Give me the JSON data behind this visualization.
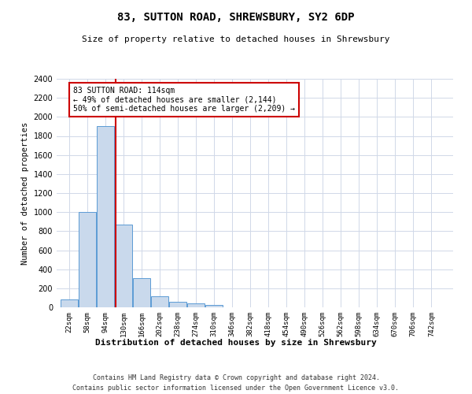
{
  "title": "83, SUTTON ROAD, SHREWSBURY, SY2 6DP",
  "subtitle": "Size of property relative to detached houses in Shrewsbury",
  "xlabel": "Distribution of detached houses by size in Shrewsbury",
  "ylabel": "Number of detached properties",
  "footer_line1": "Contains HM Land Registry data © Crown copyright and database right 2024.",
  "footer_line2": "Contains public sector information licensed under the Open Government Licence v3.0.",
  "bar_color": "#c9d9ec",
  "bar_edge_color": "#5b9bd5",
  "vline_color": "#cc0000",
  "vline_x": 114,
  "annotation_text": "83 SUTTON ROAD: 114sqm\n← 49% of detached houses are smaller (2,144)\n50% of semi-detached houses are larger (2,209) →",
  "annotation_box_color": "#cc0000",
  "categories": [
    "22sqm",
    "58sqm",
    "94sqm",
    "130sqm",
    "166sqm",
    "202sqm",
    "238sqm",
    "274sqm",
    "310sqm",
    "346sqm",
    "382sqm",
    "418sqm",
    "454sqm",
    "490sqm",
    "526sqm",
    "562sqm",
    "598sqm",
    "634sqm",
    "670sqm",
    "706sqm",
    "742sqm"
  ],
  "bin_edges": [
    22,
    58,
    94,
    130,
    166,
    202,
    238,
    274,
    310,
    346,
    382,
    418,
    454,
    490,
    526,
    562,
    598,
    634,
    670,
    706,
    742
  ],
  "bin_width": 36,
  "values": [
    80,
    1000,
    1900,
    870,
    310,
    120,
    55,
    40,
    25,
    0,
    0,
    0,
    0,
    0,
    0,
    0,
    0,
    0,
    0,
    0,
    0
  ],
  "ylim": [
    0,
    2400
  ],
  "yticks": [
    0,
    200,
    400,
    600,
    800,
    1000,
    1200,
    1400,
    1600,
    1800,
    2000,
    2200,
    2400
  ],
  "background_color": "#ffffff",
  "grid_color": "#d0d8e8"
}
